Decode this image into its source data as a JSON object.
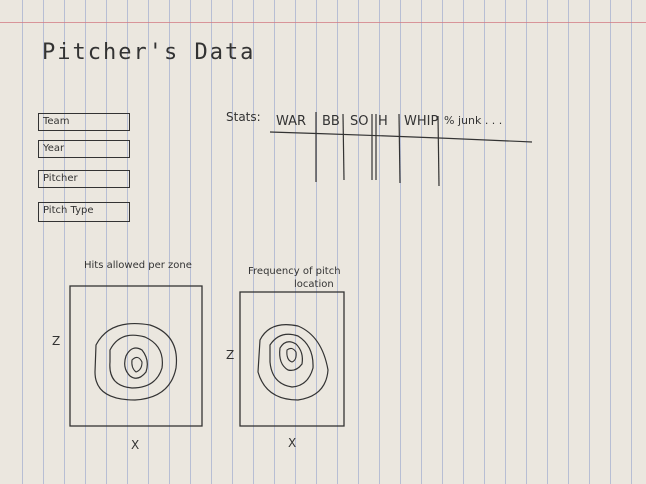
{
  "page_title": "Pitcher's Data",
  "filters": {
    "team": "Team",
    "year": "Year",
    "pitcher": "Pitcher",
    "pitch_type": "Pitch Type"
  },
  "stats": {
    "label": "Stats:",
    "columns": [
      "WAR",
      "BB",
      "SO",
      "H",
      "WHIP",
      "% junk . . ."
    ]
  },
  "charts": {
    "hits_title": "Hits allowed per zone",
    "freq_title_line1": "Frequency of pitch",
    "freq_title_line2": "location",
    "z_label": "Z",
    "x_label": "X"
  }
}
